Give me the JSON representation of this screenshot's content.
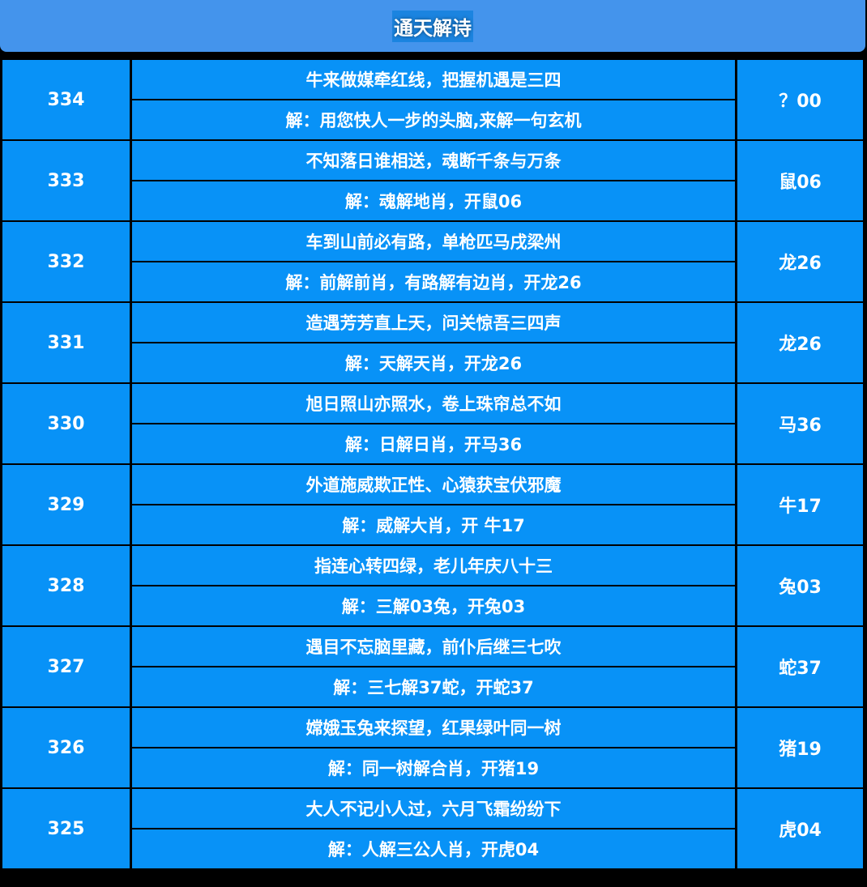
{
  "header": {
    "title": "通天解诗"
  },
  "rows": [
    {
      "issue": "334",
      "poem": "牛来做媒牵红线，把握机遇是三四",
      "solution": "解：用您快人一步的头脑,来解一句玄机",
      "result": "？00"
    },
    {
      "issue": "333",
      "poem": "不知落日谁相送，魂断千条与万条",
      "solution": "解：魂解地肖，开鼠06",
      "result": "鼠06"
    },
    {
      "issue": "332",
      "poem": "车到山前必有路，单枪匹马戌梁州",
      "solution": "解：前解前肖，有路解有边肖，开龙26",
      "result": "龙26"
    },
    {
      "issue": "331",
      "poem": "造遇芳芳直上天，问关惊吾三四声",
      "solution": "解：天解天肖，开龙26",
      "result": "龙26"
    },
    {
      "issue": "330",
      "poem": "旭日照山亦照水，卷上珠帘总不如",
      "solution": "解：日解日肖，开马36",
      "result": "马36"
    },
    {
      "issue": "329",
      "poem": "外道施威欺正性、心猿获宝伏邪魔",
      "solution": "解：威解大肖，开 牛17",
      "result": "牛17"
    },
    {
      "issue": "328",
      "poem": "指连心转四绿，老儿年庆八十三",
      "solution": "解：三解03兔，开兔03",
      "result": "兔03"
    },
    {
      "issue": "327",
      "poem": "遇目不忘脑里藏，前仆后继三七吹",
      "solution": "解：三七解37蛇，开蛇37",
      "result": "蛇37"
    },
    {
      "issue": "326",
      "poem": "嫦娥玉兔来探望，红果绿叶同一树",
      "solution": "解：同一树解合肖，开猪19",
      "result": "猪19"
    },
    {
      "issue": "325",
      "poem": "大人不记小人过，六月飞霜纷纷下",
      "solution": "解：人解三公人肖，开虎04",
      "result": "虎04"
    }
  ]
}
